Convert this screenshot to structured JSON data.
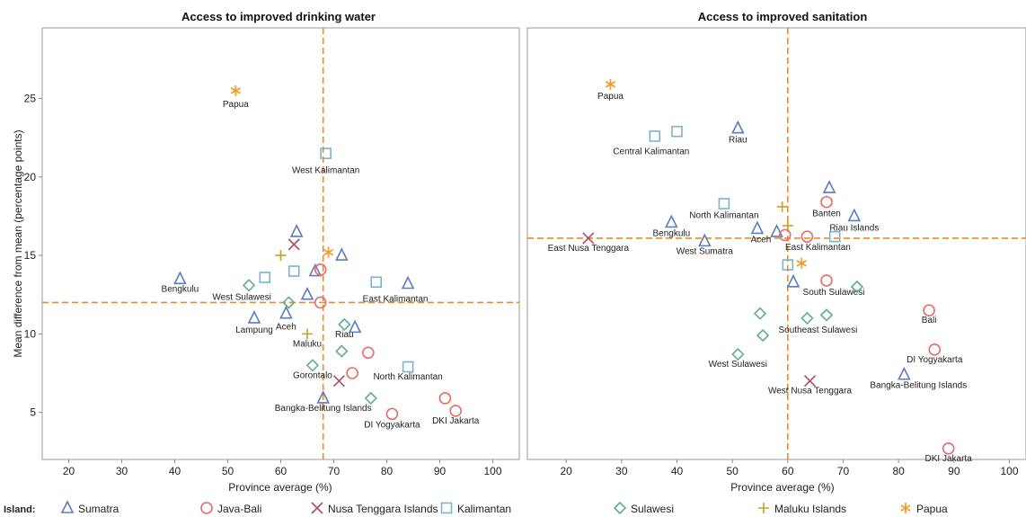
{
  "legend": {
    "title": "Island:",
    "items": [
      {
        "key": "sumatra",
        "label": "Sumatra"
      },
      {
        "key": "java",
        "label": "Java-Bali"
      },
      {
        "key": "nusa",
        "label": "Nusa Tenggara Islands"
      },
      {
        "key": "kalimantan",
        "label": "Kalimantan"
      },
      {
        "key": "sulawesi",
        "label": "Sulawesi"
      },
      {
        "key": "maluku",
        "label": "Maluku Islands"
      },
      {
        "key": "papua",
        "label": "Papua"
      }
    ]
  },
  "styles": {
    "sumatra": {
      "marker": "triangle",
      "color": "#5b7bbf"
    },
    "java": {
      "marker": "circle",
      "color": "#e86a6a"
    },
    "nusa": {
      "marker": "x",
      "color": "#b04a6a"
    },
    "kalimantan": {
      "marker": "square",
      "color": "#7bb3cf"
    },
    "sulawesi": {
      "marker": "diamond",
      "color": "#5fae8a"
    },
    "maluku": {
      "marker": "plus",
      "color": "#c9a02a"
    },
    "papua": {
      "marker": "asterisk",
      "color": "#f0a030"
    }
  },
  "reference_line_color": "#f08a24",
  "chart_data": [
    {
      "type": "scatter",
      "title": "Access to improved drinking water",
      "xlabel": "Province average (%)",
      "ylabel": "Mean difference from mean (percentage points)",
      "xlim": [
        15,
        105
      ],
      "ylim": [
        2,
        29.5
      ],
      "xticks": [
        20,
        30,
        40,
        50,
        60,
        70,
        80,
        90,
        100
      ],
      "yticks": [
        5,
        10,
        15,
        20,
        25
      ],
      "ref_x": 68,
      "ref_y": 12,
      "points": [
        {
          "island": "papua",
          "x": 51.5,
          "y": 25.5,
          "label": "Papua"
        },
        {
          "island": "kalimantan",
          "x": 68.5,
          "y": 21.5,
          "label": "West Kalimantan"
        },
        {
          "island": "sumatra",
          "x": 63,
          "y": 16.5,
          "label": ""
        },
        {
          "island": "nusa",
          "x": 62.5,
          "y": 15.7,
          "label": ""
        },
        {
          "island": "maluku",
          "x": 60,
          "y": 15,
          "label": ""
        },
        {
          "island": "papua",
          "x": 69,
          "y": 15.2,
          "label": ""
        },
        {
          "island": "sumatra",
          "x": 71.5,
          "y": 15,
          "label": ""
        },
        {
          "island": "sumatra",
          "x": 66.5,
          "y": 14,
          "label": ""
        },
        {
          "island": "java",
          "x": 67.5,
          "y": 14.1,
          "label": ""
        },
        {
          "island": "kalimantan",
          "x": 62.5,
          "y": 14,
          "label": ""
        },
        {
          "island": "kalimantan",
          "x": 57,
          "y": 13.6,
          "label": ""
        },
        {
          "island": "sumatra",
          "x": 41,
          "y": 13.5,
          "label": "Bengkulu"
        },
        {
          "island": "sulawesi",
          "x": 54,
          "y": 13.1,
          "label": "West Sulawesi"
        },
        {
          "island": "kalimantan",
          "x": 78,
          "y": 13.3,
          "label": ""
        },
        {
          "island": "sumatra",
          "x": 84,
          "y": 13.2,
          "label": "East Kalimantan"
        },
        {
          "island": "sumatra",
          "x": 65,
          "y": 12.5,
          "label": ""
        },
        {
          "island": "java",
          "x": 67.5,
          "y": 12,
          "label": ""
        },
        {
          "island": "sulawesi",
          "x": 61.5,
          "y": 12,
          "label": ""
        },
        {
          "island": "sumatra",
          "x": 61,
          "y": 11.3,
          "label": "Aceh"
        },
        {
          "island": "sumatra",
          "x": 55,
          "y": 11,
          "label": "Lampung"
        },
        {
          "island": "sulawesi",
          "x": 72,
          "y": 10.6,
          "label": "Riau"
        },
        {
          "island": "sumatra",
          "x": 74,
          "y": 10.4,
          "label": ""
        },
        {
          "island": "maluku",
          "x": 65,
          "y": 10,
          "label": "Maluku"
        },
        {
          "island": "sulawesi",
          "x": 71.5,
          "y": 8.9,
          "label": ""
        },
        {
          "island": "java",
          "x": 76.5,
          "y": 8.8,
          "label": ""
        },
        {
          "island": "sulawesi",
          "x": 66,
          "y": 8,
          "label": "Gorontalo"
        },
        {
          "island": "kalimantan",
          "x": 84,
          "y": 7.9,
          "label": "North Kalimantan"
        },
        {
          "island": "java",
          "x": 73.5,
          "y": 7.5,
          "label": ""
        },
        {
          "island": "nusa",
          "x": 71,
          "y": 7,
          "label": ""
        },
        {
          "island": "sumatra",
          "x": 68,
          "y": 5.9,
          "label": "Bangka-Belitung Islands"
        },
        {
          "island": "sulawesi",
          "x": 77,
          "y": 5.9,
          "label": ""
        },
        {
          "island": "java",
          "x": 91,
          "y": 5.9,
          "label": ""
        },
        {
          "island": "java",
          "x": 93,
          "y": 5.1,
          "label": "DKI Jakarta"
        },
        {
          "island": "java",
          "x": 81,
          "y": 4.9,
          "label": "DI Yogyakarta"
        }
      ]
    },
    {
      "type": "scatter",
      "title": "Access to improved sanitation",
      "xlabel": "Province average (%)",
      "ylabel": "",
      "xlim": [
        13,
        103
      ],
      "ylim": [
        2,
        29.5
      ],
      "xticks": [
        20,
        30,
        40,
        50,
        60,
        70,
        80,
        90,
        100
      ],
      "yticks": [],
      "ref_x": 60,
      "ref_y": 16.1,
      "points": [
        {
          "island": "papua",
          "x": 28,
          "y": 25.9,
          "label": "Papua"
        },
        {
          "island": "kalimantan",
          "x": 36,
          "y": 22.6,
          "label": "Central Kalimantan"
        },
        {
          "island": "kalimantan",
          "x": 40,
          "y": 22.9,
          "label": ""
        },
        {
          "island": "sumatra",
          "x": 51,
          "y": 23.1,
          "label": "Riau"
        },
        {
          "island": "sumatra",
          "x": 67.5,
          "y": 19.3,
          "label": ""
        },
        {
          "island": "java",
          "x": 67,
          "y": 18.4,
          "label": "Banten"
        },
        {
          "island": "kalimantan",
          "x": 48.5,
          "y": 18.3,
          "label": "North Kalimantan"
        },
        {
          "island": "maluku",
          "x": 59,
          "y": 18.1,
          "label": ""
        },
        {
          "island": "sumatra",
          "x": 72,
          "y": 17.5,
          "label": "Riau Islands"
        },
        {
          "island": "sumatra",
          "x": 39,
          "y": 17.1,
          "label": "Bengkulu"
        },
        {
          "island": "maluku",
          "x": 60,
          "y": 16.9,
          "label": ""
        },
        {
          "island": "sumatra",
          "x": 54.5,
          "y": 16.7,
          "label": "Aceh"
        },
        {
          "island": "sumatra",
          "x": 58,
          "y": 16.5,
          "label": ""
        },
        {
          "island": "java",
          "x": 59.5,
          "y": 16.3,
          "label": ""
        },
        {
          "island": "java",
          "x": 63.5,
          "y": 16.2,
          "label": "East Kalimantan"
        },
        {
          "island": "kalimantan",
          "x": 68.5,
          "y": 16.2,
          "label": ""
        },
        {
          "island": "nusa",
          "x": 24,
          "y": 16.1,
          "label": "East Nusa Tenggara"
        },
        {
          "island": "sumatra",
          "x": 45,
          "y": 15.9,
          "label": "West Sumatra"
        },
        {
          "island": "papua",
          "x": 62.5,
          "y": 14.5,
          "label": ""
        },
        {
          "island": "kalimantan",
          "x": 60,
          "y": 14.4,
          "label": ""
        },
        {
          "island": "sumatra",
          "x": 61,
          "y": 13.3,
          "label": ""
        },
        {
          "island": "java",
          "x": 67,
          "y": 13.4,
          "label": "South Sulawesi"
        },
        {
          "island": "sulawesi",
          "x": 72.5,
          "y": 13,
          "label": ""
        },
        {
          "island": "sulawesi",
          "x": 55,
          "y": 11.3,
          "label": ""
        },
        {
          "island": "sulawesi",
          "x": 63.5,
          "y": 11,
          "label": "Southeast Sulawesi"
        },
        {
          "island": "sulawesi",
          "x": 67,
          "y": 11.2,
          "label": ""
        },
        {
          "island": "java",
          "x": 85.5,
          "y": 11.5,
          "label": "Bali"
        },
        {
          "island": "sulawesi",
          "x": 55.5,
          "y": 9.9,
          "label": ""
        },
        {
          "island": "java",
          "x": 86.5,
          "y": 9,
          "label": "DI Yogyakarta"
        },
        {
          "island": "sulawesi",
          "x": 51,
          "y": 8.7,
          "label": "West Sulawesi"
        },
        {
          "island": "sumatra",
          "x": 81,
          "y": 7.4,
          "label": "Bangka-Belitung Islands"
        },
        {
          "island": "nusa",
          "x": 64,
          "y": 7,
          "label": "West Nusa Tenggara"
        },
        {
          "island": "java",
          "x": 89,
          "y": 2.7,
          "label": "DKI Jakarta"
        }
      ]
    }
  ]
}
